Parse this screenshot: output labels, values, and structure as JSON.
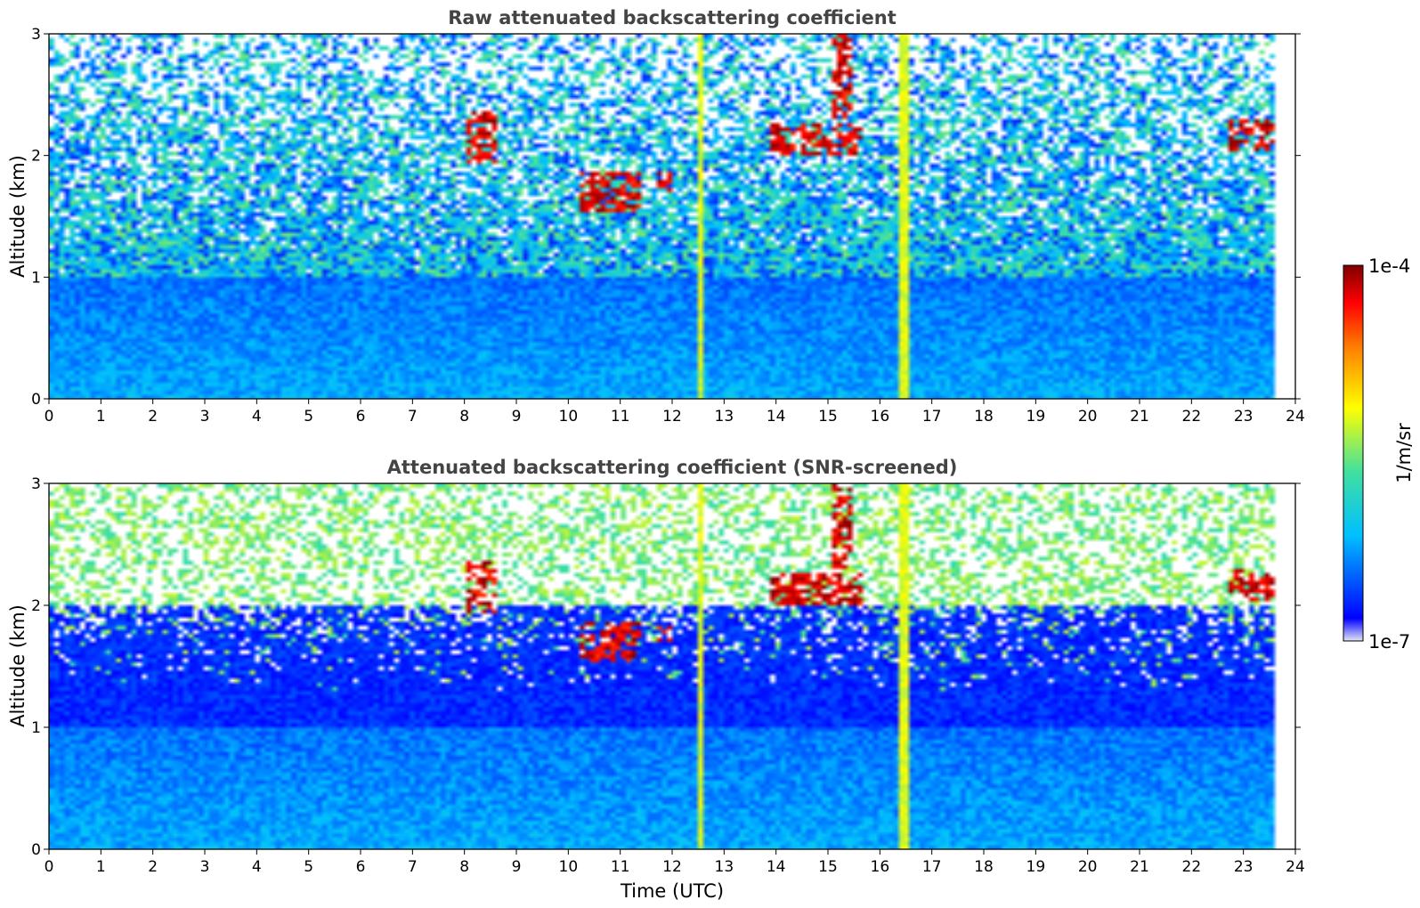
{
  "chart_data": [
    {
      "type": "heatmap",
      "title": "Raw attenuated backscattering coefficient",
      "xlabel": "",
      "ylabel": "Altitude (km)",
      "xlim": [
        0,
        24
      ],
      "ylim": [
        0,
        3
      ],
      "xticks": [
        "0",
        "1",
        "2",
        "3",
        "4",
        "5",
        "6",
        "7",
        "8",
        "9",
        "10",
        "11",
        "12",
        "13",
        "14",
        "15",
        "16",
        "17",
        "18",
        "19",
        "20",
        "21",
        "22",
        "23",
        "24"
      ],
      "yticks": [
        "0",
        "1",
        "2",
        "3"
      ],
      "data_extent_x": [
        0,
        23.8
      ],
      "cloud_layers": [
        {
          "t0": 8.1,
          "t1": 8.7,
          "h0": 1.95,
          "h1": 2.35
        },
        {
          "t0": 10.3,
          "t1": 11.5,
          "h0": 1.55,
          "h1": 1.85
        },
        {
          "t0": 11.8,
          "t1": 12.1,
          "h0": 1.7,
          "h1": 1.85
        },
        {
          "t0": 14.0,
          "t1": 15.8,
          "h0": 2.0,
          "h1": 2.25
        },
        {
          "t0": 15.2,
          "t1": 15.6,
          "h0": 2.3,
          "h1": 3.0
        },
        {
          "t0": 22.9,
          "t1": 23.8,
          "h0": 2.05,
          "h1": 2.3
        }
      ],
      "aerosol_plume_times": [
        12.65,
        16.6
      ]
    },
    {
      "type": "heatmap",
      "title": "Attenuated backscattering coefficient (SNR-screened)",
      "xlabel": "Time (UTC)",
      "ylabel": "Altitude (km)",
      "xlim": [
        0,
        24
      ],
      "ylim": [
        0,
        3
      ],
      "xticks": [
        "0",
        "1",
        "2",
        "3",
        "4",
        "5",
        "6",
        "7",
        "8",
        "9",
        "10",
        "11",
        "12",
        "13",
        "14",
        "15",
        "16",
        "17",
        "18",
        "19",
        "20",
        "21",
        "22",
        "23",
        "24"
      ],
      "yticks": [
        "0",
        "1",
        "2",
        "3"
      ],
      "data_extent_x": [
        0,
        23.8
      ],
      "cloud_layers": [
        {
          "t0": 8.1,
          "t1": 8.7,
          "h0": 1.95,
          "h1": 2.35
        },
        {
          "t0": 10.3,
          "t1": 11.5,
          "h0": 1.55,
          "h1": 1.85
        },
        {
          "t0": 11.8,
          "t1": 12.1,
          "h0": 1.7,
          "h1": 1.85
        },
        {
          "t0": 14.0,
          "t1": 15.8,
          "h0": 2.0,
          "h1": 2.25
        },
        {
          "t0": 15.2,
          "t1": 15.6,
          "h0": 2.3,
          "h1": 3.0
        },
        {
          "t0": 22.9,
          "t1": 23.8,
          "h0": 2.05,
          "h1": 2.3
        }
      ],
      "screened_threshold_km": 2.0
    }
  ],
  "colorbar": {
    "label": "1/m/sr",
    "max_label": "1e-4",
    "min_label": "1e-7",
    "vmin": 1e-07,
    "vmax": 0.0001,
    "scale": "log",
    "colormap": "jet",
    "colors": [
      "#e6e6f5",
      "#0000ff",
      "#00bfff",
      "#40e0a0",
      "#ffff00",
      "#ff8000",
      "#ff0000",
      "#800000"
    ]
  }
}
